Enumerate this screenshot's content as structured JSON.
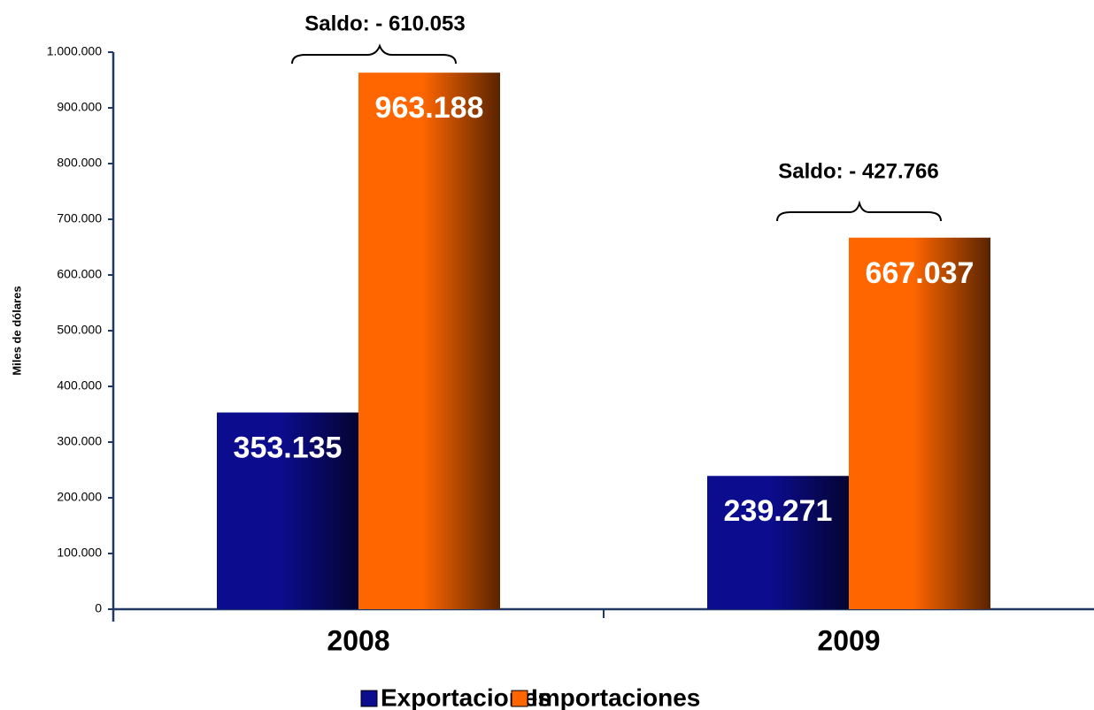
{
  "chart_data": {
    "type": "bar",
    "y_label": "Miles de dólares",
    "categories": [
      "2008",
      "2009"
    ],
    "series": [
      {
        "name": "Exportaciones",
        "color": "#0c0c8e",
        "values": [
          353135,
          239271
        ],
        "value_labels": [
          "353.135",
          "239.271"
        ]
      },
      {
        "name": "Importaciones",
        "color": "#ff6600",
        "values": [
          963188,
          667037
        ],
        "value_labels": [
          "963.188",
          "667.037"
        ]
      }
    ],
    "annotations": [
      "Saldo: - 610.053",
      "Saldo: - 427.766"
    ],
    "ylim": [
      0,
      1000000
    ],
    "yticks": [
      {
        "value": 0,
        "label": "0"
      },
      {
        "value": 100000,
        "label": "100.000"
      },
      {
        "value": 200000,
        "label": "200.000"
      },
      {
        "value": 300000,
        "label": "300.000"
      },
      {
        "value": 400000,
        "label": "400.000"
      },
      {
        "value": 500000,
        "label": "500.000"
      },
      {
        "value": 600000,
        "label": "600.000"
      },
      {
        "value": 700000,
        "label": "700.000"
      },
      {
        "value": 800000,
        "label": "800.000"
      },
      {
        "value": 900000,
        "label": "900.000"
      },
      {
        "value": 1000000,
        "label": "1.000.000"
      }
    ],
    "legend": "bottom"
  }
}
